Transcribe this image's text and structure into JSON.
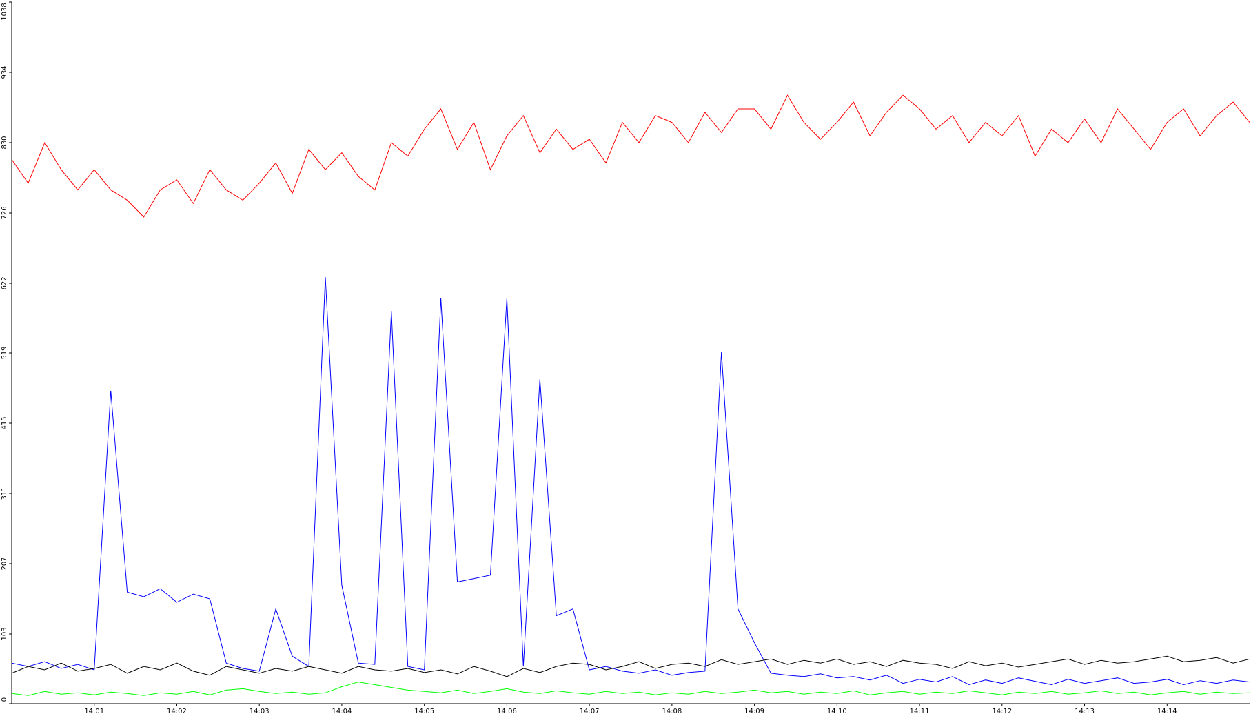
{
  "chart_data": {
    "type": "line",
    "xlim": [
      840,
      855
    ],
    "xticks": [
      {
        "value": 841,
        "label": "14:01"
      },
      {
        "value": 842,
        "label": "14:02"
      },
      {
        "value": 843,
        "label": "14:03"
      },
      {
        "value": 844,
        "label": "14:04"
      },
      {
        "value": 845,
        "label": "14:05"
      },
      {
        "value": 846,
        "label": "14:06"
      },
      {
        "value": 847,
        "label": "14:07"
      },
      {
        "value": 848,
        "label": "14:08"
      },
      {
        "value": 849,
        "label": "14:09"
      },
      {
        "value": 850,
        "label": "14:10"
      },
      {
        "value": 851,
        "label": "14:11"
      },
      {
        "value": 852,
        "label": "14:12"
      },
      {
        "value": 853,
        "label": "14:13"
      },
      {
        "value": 854,
        "label": "14:14"
      }
    ],
    "ylim": [
      0,
      1038
    ],
    "yticks": [
      0,
      103,
      207,
      311,
      415,
      519,
      622,
      726,
      830,
      934,
      1038
    ],
    "x": [
      840,
      840.2,
      840.4,
      840.6,
      840.8,
      841,
      841.2,
      841.4,
      841.6,
      841.8,
      842,
      842.2,
      842.4,
      842.6,
      842.8,
      843,
      843.2,
      843.4,
      843.6,
      843.8,
      844,
      844.2,
      844.4,
      844.6,
      844.8,
      845,
      845.2,
      845.4,
      845.6,
      845.8,
      846,
      846.2,
      846.4,
      846.6,
      846.8,
      847,
      847.2,
      847.4,
      847.6,
      847.8,
      848,
      848.2,
      848.4,
      848.6,
      848.8,
      849,
      849.2,
      849.4,
      849.6,
      849.8,
      850,
      850.2,
      850.4,
      850.6,
      850.8,
      851,
      851.2,
      851.4,
      851.6,
      851.8,
      852,
      852.2,
      852.4,
      852.6,
      852.8,
      853,
      853.2,
      853.4,
      853.6,
      853.8,
      854,
      854.2,
      854.4,
      854.6,
      854.8,
      855
    ],
    "series": [
      {
        "color": "#ff0000",
        "values": [
          805,
          770,
          830,
          790,
          760,
          790,
          760,
          745,
          720,
          760,
          775,
          740,
          790,
          760,
          745,
          770,
          800,
          755,
          820,
          790,
          815,
          780,
          760,
          830,
          810,
          850,
          880,
          820,
          860,
          790,
          840,
          870,
          815,
          850,
          820,
          835,
          800,
          860,
          830,
          870,
          860,
          830,
          875,
          845,
          880,
          880,
          850,
          900,
          860,
          835,
          860,
          890,
          840,
          875,
          900,
          880,
          850,
          870,
          830,
          860,
          840,
          870,
          810,
          850,
          830,
          865,
          830,
          880,
          850,
          820,
          860,
          880,
          840,
          870,
          890,
          860
        ]
      },
      {
        "color": "#0000ff",
        "values": [
          60,
          55,
          62,
          52,
          58,
          50,
          463,
          165,
          158,
          170,
          150,
          162,
          155,
          60,
          52,
          48,
          140,
          70,
          55,
          631,
          175,
          60,
          58,
          580,
          55,
          50,
          600,
          180,
          185,
          190,
          600,
          55,
          480,
          130,
          140,
          50,
          55,
          48,
          45,
          50,
          42,
          46,
          48,
          520,
          140,
          90,
          45,
          42,
          40,
          44,
          38,
          40,
          35,
          42,
          30,
          36,
          32,
          40,
          28,
          35,
          30,
          38,
          33,
          28,
          36,
          30,
          34,
          38,
          30,
          32,
          36,
          28,
          34,
          30,
          35,
          32
        ]
      },
      {
        "color": "#000000",
        "values": [
          45,
          55,
          50,
          60,
          48,
          52,
          58,
          45,
          55,
          50,
          60,
          48,
          42,
          55,
          50,
          45,
          52,
          48,
          55,
          50,
          45,
          55,
          50,
          48,
          52,
          46,
          50,
          44,
          55,
          48,
          40,
          52,
          46,
          55,
          60,
          58,
          50,
          55,
          62,
          52,
          58,
          60,
          55,
          65,
          58,
          62,
          66,
          58,
          64,
          60,
          66,
          58,
          62,
          55,
          64,
          60,
          58,
          52,
          62,
          56,
          60,
          54,
          58,
          62,
          66,
          58,
          64,
          60,
          62,
          66,
          70,
          62,
          64,
          68,
          60,
          66
        ]
      },
      {
        "color": "#00ff00",
        "values": [
          15,
          12,
          18,
          14,
          16,
          13,
          17,
          15,
          12,
          16,
          14,
          18,
          13,
          20,
          22,
          18,
          15,
          17,
          14,
          16,
          25,
          32,
          28,
          24,
          20,
          18,
          16,
          20,
          15,
          18,
          22,
          17,
          15,
          19,
          16,
          14,
          18,
          15,
          17,
          13,
          16,
          14,
          18,
          15,
          17,
          20,
          16,
          18,
          14,
          17,
          15,
          19,
          13,
          16,
          18,
          14,
          17,
          15,
          19,
          16,
          13,
          17,
          15,
          18,
          14,
          16,
          19,
          15,
          17,
          13,
          16,
          18,
          14,
          17,
          15,
          16
        ]
      }
    ]
  }
}
